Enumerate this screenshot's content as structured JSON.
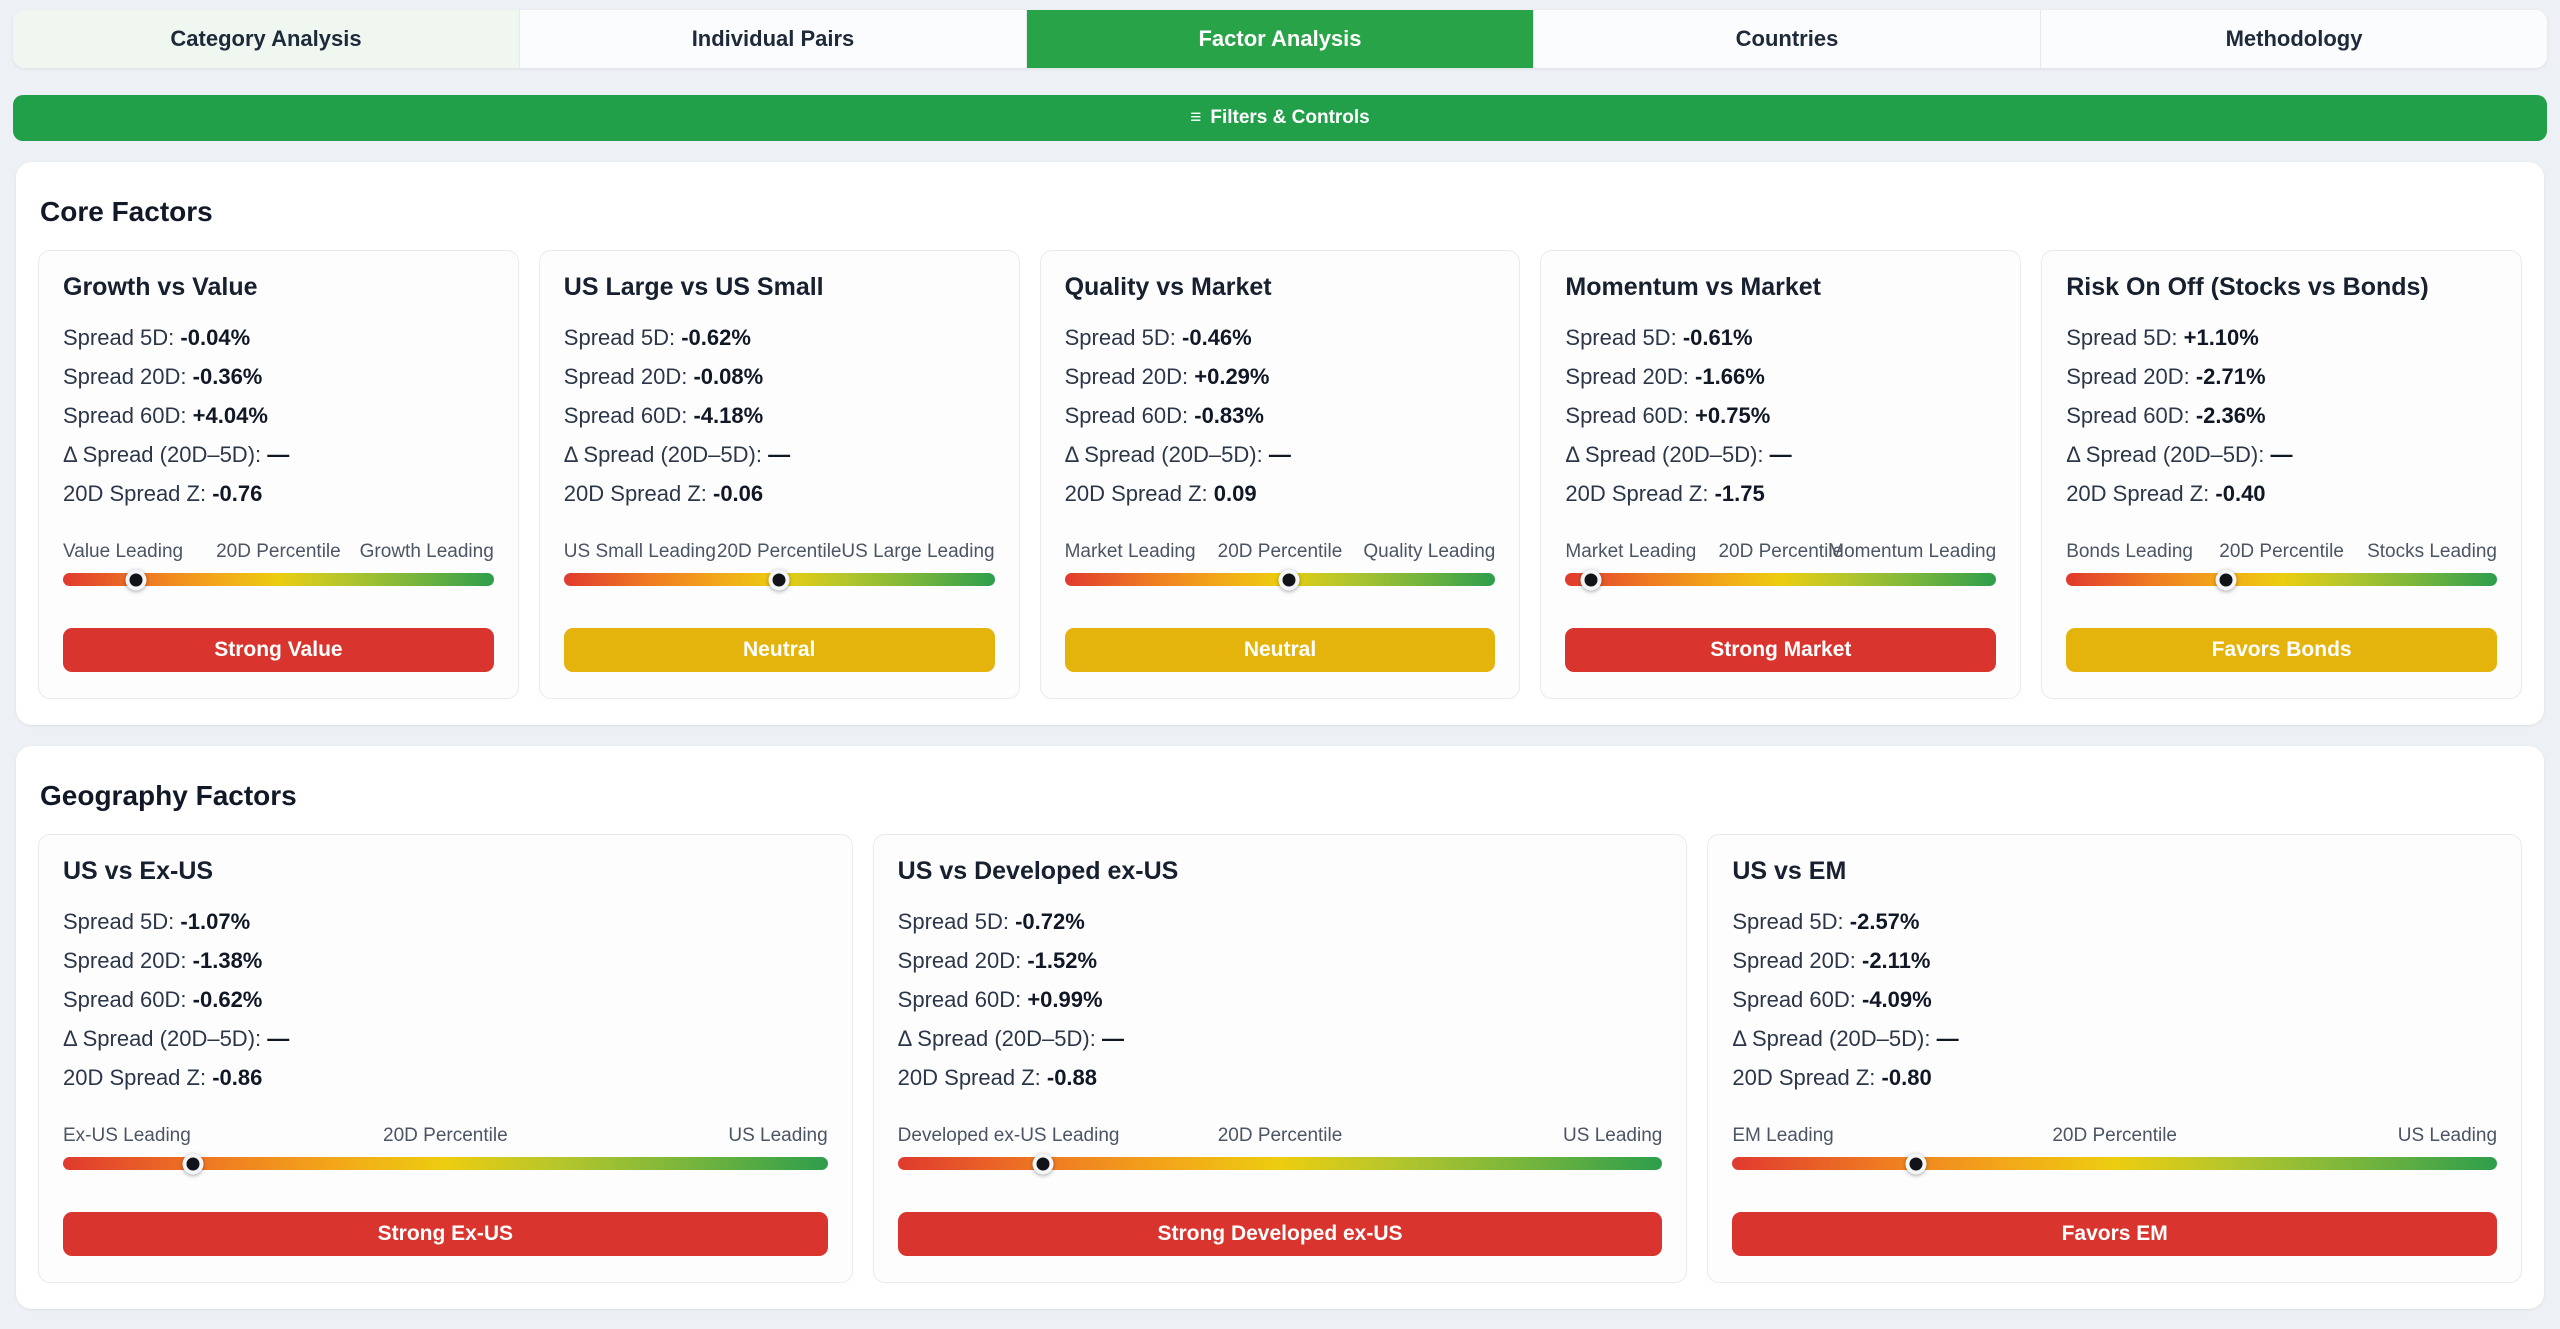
{
  "tabs": [
    {
      "label": "Category Analysis",
      "active": false
    },
    {
      "label": "Individual Pairs",
      "active": false
    },
    {
      "label": "Factor Analysis",
      "active": true
    },
    {
      "label": "Countries",
      "active": false
    },
    {
      "label": "Methodology",
      "active": false
    }
  ],
  "filters_bar": {
    "icon": "≡",
    "label": "Filters & Controls"
  },
  "colors": {
    "green": "#28a348",
    "red": "#d9352e",
    "yellow": "#e4b40d"
  },
  "sections": [
    {
      "title": "Core Factors",
      "cards": [
        {
          "title": "Growth vs Value",
          "rows": [
            {
              "label": "Spread 5D:",
              "value": "-0.04%"
            },
            {
              "label": "Spread 20D:",
              "value": "-0.36%"
            },
            {
              "label": "Spread 60D:",
              "value": "+4.04%"
            },
            {
              "label": "Δ Spread (20D–5D):",
              "value": "—"
            },
            {
              "label": "20D Spread Z:",
              "value": "-0.76"
            }
          ],
          "slider": {
            "left": "Value Leading",
            "center": "20D Percentile",
            "right": "Growth Leading",
            "percent": 17
          },
          "badge": {
            "label": "Strong Value",
            "color": "red"
          }
        },
        {
          "title": "US Large vs US Small",
          "rows": [
            {
              "label": "Spread 5D:",
              "value": "-0.62%"
            },
            {
              "label": "Spread 20D:",
              "value": "-0.08%"
            },
            {
              "label": "Spread 60D:",
              "value": "-4.18%"
            },
            {
              "label": "Δ Spread (20D–5D):",
              "value": "—"
            },
            {
              "label": "20D Spread Z:",
              "value": "-0.06"
            }
          ],
          "slider": {
            "left": "US Small Leading",
            "center": "20D Percentile",
            "right": "US Large Leading",
            "percent": 50
          },
          "badge": {
            "label": "Neutral",
            "color": "yellow"
          }
        },
        {
          "title": "Quality vs Market",
          "rows": [
            {
              "label": "Spread 5D:",
              "value": "-0.46%"
            },
            {
              "label": "Spread 20D:",
              "value": "+0.29%"
            },
            {
              "label": "Spread 60D:",
              "value": "-0.83%"
            },
            {
              "label": "Δ Spread (20D–5D):",
              "value": "—"
            },
            {
              "label": "20D Spread Z:",
              "value": "0.09"
            }
          ],
          "slider": {
            "left": "Market Leading",
            "center": "20D Percentile",
            "right": "Quality Leading",
            "percent": 52
          },
          "badge": {
            "label": "Neutral",
            "color": "yellow"
          }
        },
        {
          "title": "Momentum vs Market",
          "rows": [
            {
              "label": "Spread 5D:",
              "value": "-0.61%"
            },
            {
              "label": "Spread 20D:",
              "value": "-1.66%"
            },
            {
              "label": "Spread 60D:",
              "value": "+0.75%"
            },
            {
              "label": "Δ Spread (20D–5D):",
              "value": "—"
            },
            {
              "label": "20D Spread Z:",
              "value": "-1.75"
            }
          ],
          "slider": {
            "left": "Market Leading",
            "center": "20D Percentile",
            "right": "Momentum Leading",
            "percent": 6
          },
          "badge": {
            "label": "Strong Market",
            "color": "red"
          }
        },
        {
          "title": "Risk On Off (Stocks vs Bonds)",
          "rows": [
            {
              "label": "Spread 5D:",
              "value": "+1.10%"
            },
            {
              "label": "Spread 20D:",
              "value": "-2.71%"
            },
            {
              "label": "Spread 60D:",
              "value": "-2.36%"
            },
            {
              "label": "Δ Spread (20D–5D):",
              "value": "—"
            },
            {
              "label": "20D Spread Z:",
              "value": "-0.40"
            }
          ],
          "slider": {
            "left": "Bonds Leading",
            "center": "20D Percentile",
            "right": "Stocks Leading",
            "percent": 37
          },
          "badge": {
            "label": "Favors Bonds",
            "color": "yellow"
          }
        }
      ]
    },
    {
      "title": "Geography Factors",
      "cards": [
        {
          "title": "US vs Ex-US",
          "rows": [
            {
              "label": "Spread 5D:",
              "value": "-1.07%"
            },
            {
              "label": "Spread 20D:",
              "value": "-1.38%"
            },
            {
              "label": "Spread 60D:",
              "value": "-0.62%"
            },
            {
              "label": "Δ Spread (20D–5D):",
              "value": "—"
            },
            {
              "label": "20D Spread Z:",
              "value": "-0.86"
            }
          ],
          "slider": {
            "left": "Ex-US Leading",
            "center": "20D Percentile",
            "right": "US Leading",
            "percent": 17
          },
          "badge": {
            "label": "Strong Ex-US",
            "color": "red"
          }
        },
        {
          "title": "US vs Developed ex-US",
          "rows": [
            {
              "label": "Spread 5D:",
              "value": "-0.72%"
            },
            {
              "label": "Spread 20D:",
              "value": "-1.52%"
            },
            {
              "label": "Spread 60D:",
              "value": "+0.99%"
            },
            {
              "label": "Δ Spread (20D–5D):",
              "value": "—"
            },
            {
              "label": "20D Spread Z:",
              "value": "-0.88"
            }
          ],
          "slider": {
            "left": "Developed ex-US Leading",
            "center": "20D Percentile",
            "right": "US Leading",
            "percent": 19
          },
          "badge": {
            "label": "Strong Developed ex-US",
            "color": "red"
          }
        },
        {
          "title": "US vs EM",
          "rows": [
            {
              "label": "Spread 5D:",
              "value": "-2.57%"
            },
            {
              "label": "Spread 20D:",
              "value": "-2.11%"
            },
            {
              "label": "Spread 60D:",
              "value": "-4.09%"
            },
            {
              "label": "Δ Spread (20D–5D):",
              "value": "—"
            },
            {
              "label": "20D Spread Z:",
              "value": "-0.80"
            }
          ],
          "slider": {
            "left": "EM Leading",
            "center": "20D Percentile",
            "right": "US Leading",
            "percent": 24
          },
          "badge": {
            "label": "Favors EM",
            "color": "red"
          }
        }
      ]
    }
  ]
}
